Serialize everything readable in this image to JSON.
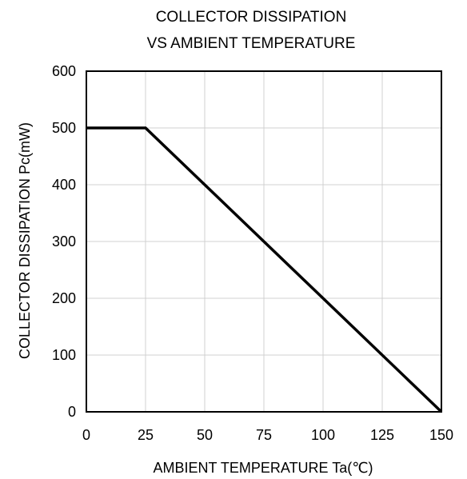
{
  "chart_data": {
    "type": "line",
    "title": "COLLECTOR DISSIPATION",
    "subtitle": "VS AMBIENT TEMPERATURE",
    "xlabel": "AMBIENT TEMPERATURE  Ta(℃)",
    "ylabel": "COLLECTOR DISSIPATION  Pc(mW)",
    "xlim": [
      0,
      150
    ],
    "ylim": [
      0,
      600
    ],
    "x_ticks": [
      0,
      25,
      50,
      75,
      100,
      125,
      150
    ],
    "y_ticks": [
      0,
      100,
      200,
      300,
      400,
      500,
      600
    ],
    "grid": true,
    "legend": "none",
    "series": [
      {
        "color": "#000000",
        "x": [
          0,
          25,
          150
        ],
        "y": [
          500,
          500,
          0
        ]
      }
    ],
    "colors": {
      "grid": "#d0d0d0",
      "frame": "#000000",
      "line": "#000000"
    }
  }
}
